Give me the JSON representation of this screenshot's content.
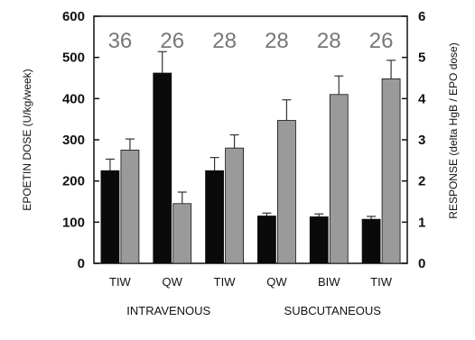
{
  "chart_data": {
    "type": "bar",
    "categories": [
      "TIW",
      "QW",
      "TIW",
      "QW",
      "BIW",
      "TIW"
    ],
    "groups": [
      "INTRAVENOUS",
      "SUBCUTANEOUS"
    ],
    "n_labels": [
      "36",
      "26",
      "28",
      "28",
      "28",
      "26"
    ],
    "ylabel_left": "EPOETIN DOSE (U/kg/week)",
    "ylabel_right": "RESPONSE (delta HgB / EPO dose)",
    "ylim_left": [
      0,
      600
    ],
    "ylim_right": [
      0,
      6
    ],
    "yticks_left": [
      "0",
      "100",
      "200",
      "300",
      "400",
      "500",
      "600"
    ],
    "yticks_right": [
      "0",
      "1",
      "2",
      "3",
      "4",
      "5",
      "6"
    ],
    "series": [
      {
        "color": "#0a0a0a",
        "axis": "left",
        "values": [
          225,
          462,
          225,
          115,
          113,
          107
        ],
        "errors": [
          28,
          52,
          32,
          7,
          7,
          7
        ]
      },
      {
        "color": "#9a9a9a",
        "axis": "right",
        "values": [
          2.75,
          1.45,
          2.8,
          3.47,
          4.1,
          4.48
        ],
        "errors": [
          0.27,
          0.28,
          0.32,
          0.5,
          0.45,
          0.45
        ]
      }
    ],
    "grid": false
  }
}
